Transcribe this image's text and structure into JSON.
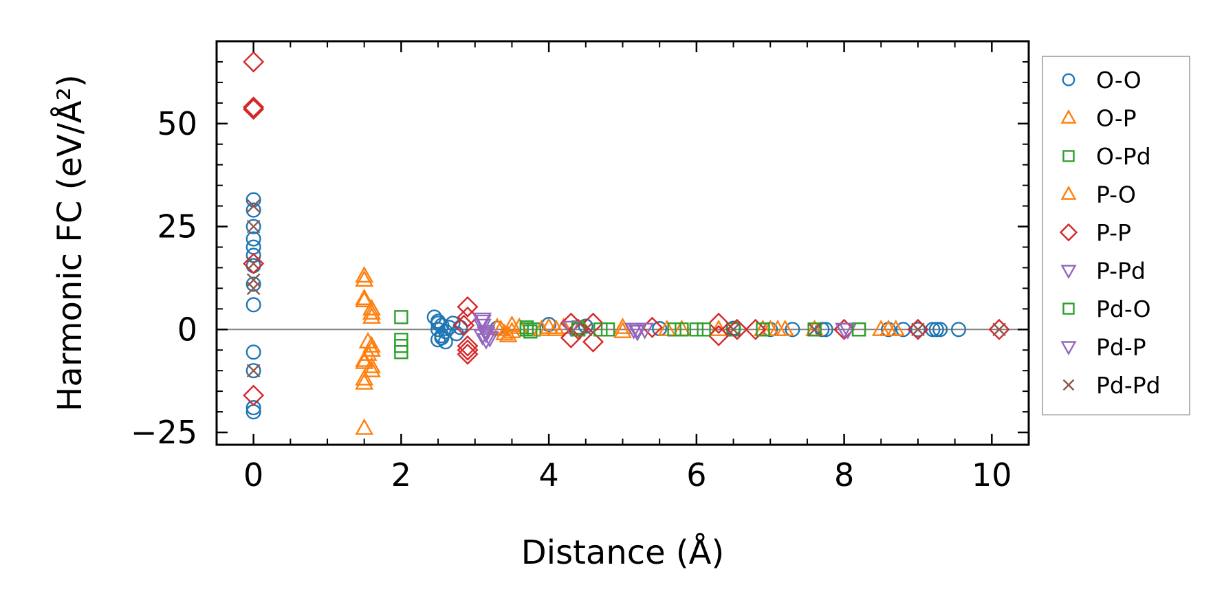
{
  "chart_data": {
    "type": "scatter",
    "xlabel": "Distance (Å)",
    "ylabel": "Harmonic FC (eV/Å²)",
    "xlim": [
      -0.5,
      10.5
    ],
    "ylim": [
      -28,
      70
    ],
    "xticks": [
      0,
      2,
      4,
      6,
      8,
      10
    ],
    "yticks": [
      -25,
      0,
      25,
      50
    ],
    "ytick_labels": [
      "−25",
      "0",
      "25",
      "50"
    ],
    "zero_line": true,
    "grid": false,
    "legend_position": "right-outside",
    "series": [
      {
        "name": "O-O",
        "marker": "circle",
        "color": "#1f77b4",
        "points": [
          [
            0,
            31.5
          ],
          [
            0,
            29
          ],
          [
            0,
            25
          ],
          [
            0,
            22
          ],
          [
            0,
            20
          ],
          [
            0,
            18
          ],
          [
            0,
            15.5
          ],
          [
            0,
            11
          ],
          [
            0,
            6
          ],
          [
            0,
            -5.5
          ],
          [
            0,
            -10
          ],
          [
            0,
            -19
          ],
          [
            0,
            -20
          ],
          [
            2.45,
            3
          ],
          [
            2.5,
            2
          ],
          [
            2.55,
            1
          ],
          [
            2.5,
            0
          ],
          [
            2.6,
            -0.5
          ],
          [
            2.55,
            -1.5
          ],
          [
            2.5,
            -2.5
          ],
          [
            2.6,
            -3
          ],
          [
            2.65,
            0.5
          ],
          [
            2.7,
            1.5
          ],
          [
            2.75,
            -1
          ],
          [
            2.8,
            0.5
          ],
          [
            2.5,
            1.5
          ],
          [
            2.55,
            -2
          ],
          [
            3.3,
            0.3
          ],
          [
            4.0,
            1.2
          ],
          [
            4.5,
            0.8
          ],
          [
            5.5,
            0.2
          ],
          [
            6.5,
            0.3
          ],
          [
            7.0,
            0
          ],
          [
            7.3,
            0
          ],
          [
            7.7,
            0
          ],
          [
            7.75,
            0
          ],
          [
            8.6,
            0
          ],
          [
            8.8,
            0
          ],
          [
            9.0,
            0
          ],
          [
            9.2,
            0
          ],
          [
            9.25,
            0
          ],
          [
            9.3,
            0
          ],
          [
            9.55,
            0
          ]
        ]
      },
      {
        "name": "O-P",
        "marker": "triangle-up",
        "color": "#ff7f0e",
        "points": [
          [
            1.5,
            13
          ],
          [
            1.5,
            12
          ],
          [
            1.5,
            7.5
          ],
          [
            1.5,
            7
          ],
          [
            1.6,
            5
          ],
          [
            1.6,
            4
          ],
          [
            1.6,
            3
          ],
          [
            1.55,
            -3
          ],
          [
            1.6,
            -4
          ],
          [
            1.6,
            -5
          ],
          [
            1.55,
            -6
          ],
          [
            1.5,
            -7.5
          ],
          [
            1.5,
            -8
          ],
          [
            1.6,
            -9
          ],
          [
            1.6,
            -10
          ],
          [
            1.5,
            -12
          ],
          [
            1.5,
            -13
          ],
          [
            1.5,
            -24
          ],
          [
            3.3,
            0.5
          ],
          [
            3.5,
            1
          ],
          [
            3.6,
            0.5
          ],
          [
            3.4,
            -1
          ],
          [
            3.45,
            -1.5
          ],
          [
            4.0,
            0.5
          ],
          [
            4.2,
            0.5
          ],
          [
            5.0,
            0.5
          ],
          [
            5.8,
            0
          ],
          [
            6.9,
            0
          ],
          [
            7.1,
            0
          ],
          [
            7.2,
            0
          ],
          [
            8.5,
            0
          ],
          [
            8.7,
            0
          ]
        ]
      },
      {
        "name": "O-Pd",
        "marker": "square",
        "color": "#2ca02c",
        "points": [
          [
            2.0,
            3
          ],
          [
            2.0,
            -2.5
          ],
          [
            2.0,
            -4
          ],
          [
            2.0,
            -5.5
          ],
          [
            3.7,
            0
          ],
          [
            3.8,
            0
          ],
          [
            4.4,
            0.5
          ],
          [
            4.8,
            0
          ],
          [
            5.8,
            0
          ],
          [
            6.5,
            0
          ],
          [
            8.2,
            0
          ]
        ]
      },
      {
        "name": "P-O",
        "marker": "triangle-up",
        "color": "#ff7f0e",
        "points": [
          [
            3.35,
            0
          ],
          [
            3.5,
            -0.5
          ],
          [
            3.9,
            0
          ],
          [
            4.1,
            0
          ],
          [
            5.0,
            -0.5
          ],
          [
            5.6,
            0
          ],
          [
            6.3,
            0
          ],
          [
            7.0,
            0
          ],
          [
            7.6,
            0
          ],
          [
            8.6,
            0
          ]
        ]
      },
      {
        "name": "P-P",
        "marker": "diamond",
        "color": "#d62728",
        "points": [
          [
            0,
            65
          ],
          [
            0,
            54
          ],
          [
            0,
            53.5
          ],
          [
            0,
            16
          ],
          [
            0,
            -16
          ],
          [
            2.9,
            5.5
          ],
          [
            2.9,
            3
          ],
          [
            2.85,
            1
          ],
          [
            2.9,
            -4
          ],
          [
            2.9,
            -5
          ],
          [
            2.9,
            -6
          ],
          [
            4.3,
            1.5
          ],
          [
            4.3,
            -2
          ],
          [
            4.4,
            0
          ],
          [
            4.6,
            1.5
          ],
          [
            4.6,
            -3
          ],
          [
            5.4,
            0.5
          ],
          [
            6.3,
            1.5
          ],
          [
            6.3,
            -1.5
          ],
          [
            6.55,
            0
          ],
          [
            6.8,
            0
          ],
          [
            8.0,
            0
          ],
          [
            9.0,
            0
          ],
          [
            10.1,
            0
          ]
        ]
      },
      {
        "name": "P-Pd",
        "marker": "triangle-down",
        "color": "#9467bd",
        "points": [
          [
            3.1,
            2.5
          ],
          [
            3.1,
            1
          ],
          [
            3.15,
            -0.5
          ],
          [
            3.1,
            -1.5
          ],
          [
            3.15,
            -2.5
          ],
          [
            4.3,
            0.5
          ],
          [
            5.2,
            0
          ],
          [
            5.3,
            0
          ],
          [
            8.05,
            0
          ]
        ]
      },
      {
        "name": "Pd-O",
        "marker": "square",
        "color": "#2ca02c",
        "points": [
          [
            3.7,
            0.5
          ],
          [
            3.75,
            -0.5
          ],
          [
            4.4,
            0
          ],
          [
            4.7,
            0
          ],
          [
            5.7,
            0
          ],
          [
            6.0,
            0
          ],
          [
            6.1,
            0
          ],
          [
            6.9,
            0
          ],
          [
            7.6,
            0
          ],
          [
            8.2,
            0
          ]
        ]
      },
      {
        "name": "Pd-P",
        "marker": "triangle-down",
        "color": "#9467bd",
        "points": [
          [
            3.1,
            2
          ],
          [
            3.15,
            -1
          ],
          [
            3.2,
            -2
          ],
          [
            5.15,
            0
          ],
          [
            5.2,
            -0.5
          ],
          [
            8.0,
            0
          ]
        ]
      },
      {
        "name": "Pd-Pd",
        "marker": "x",
        "color": "#8c564b",
        "points": [
          [
            0,
            30
          ],
          [
            0,
            25
          ],
          [
            0,
            16
          ],
          [
            0,
            12
          ],
          [
            0,
            10
          ],
          [
            0,
            -10
          ],
          [
            4.5,
            0
          ],
          [
            6.5,
            0
          ],
          [
            7.6,
            0
          ],
          [
            9.0,
            0
          ],
          [
            10.1,
            0
          ]
        ]
      }
    ]
  }
}
